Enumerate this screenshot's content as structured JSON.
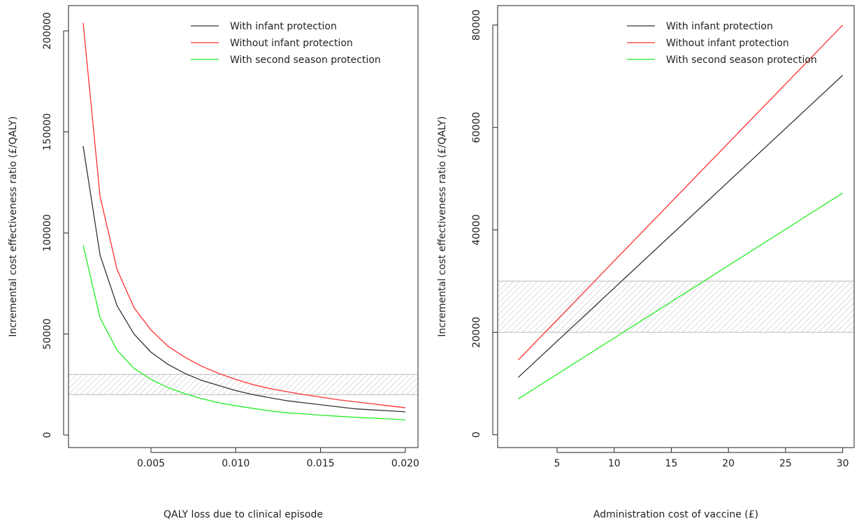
{
  "chart_data": [
    {
      "type": "line",
      "x_label": "QALY loss due to clinical episode",
      "y_label": "Incremental cost effectiveness ratio (£/QALY)",
      "x": [
        0.001,
        0.002,
        0.003,
        0.004,
        0.005,
        0.006,
        0.007,
        0.008,
        0.009,
        0.01,
        0.011,
        0.012,
        0.013,
        0.014,
        0.015,
        0.016,
        0.017,
        0.018,
        0.019,
        0.02
      ],
      "series": [
        {
          "name": "With infant protection",
          "color": "#333333",
          "values": [
            143000,
            89000,
            64000,
            50000,
            41000,
            35000,
            30500,
            27000,
            24500,
            22000,
            20000,
            18500,
            17000,
            16000,
            15000,
            14000,
            13000,
            12500,
            12000,
            11500
          ]
        },
        {
          "name": "Without infant protection",
          "color": "#ff3030",
          "values": [
            204000,
            118000,
            82000,
            63000,
            52000,
            44000,
            38500,
            34000,
            30500,
            27500,
            25000,
            23000,
            21500,
            20000,
            18800,
            17500,
            16500,
            15500,
            14500,
            13500
          ]
        },
        {
          "name": "With second season protection",
          "color": "#22ee22",
          "values": [
            94000,
            58000,
            42000,
            33000,
            27500,
            23500,
            20500,
            18000,
            16000,
            14500,
            13200,
            12000,
            11000,
            10500,
            9800,
            9300,
            8800,
            8400,
            8000,
            7500
          ]
        }
      ],
      "shaded_range": [
        20000,
        30000
      ],
      "xlim": [
        0.000137,
        0.020745
      ],
      "ylim": [
        -6200,
        212500
      ],
      "xticks": [
        0.005,
        {
          "value": 0.01,
          "label": "0.010"
        },
        0.015,
        {
          "value": 0.02,
          "label": "0.020"
        }
      ],
      "yticks": [
        0,
        50000,
        100000,
        150000,
        200000
      ],
      "legend": "top-right"
    },
    {
      "type": "line",
      "x_label": "Administration cost of vaccine (£)",
      "y_label": "Incremental cost effectiveness ratio (£/QALY)",
      "x": [
        1.6,
        30
      ],
      "series": [
        {
          "name": "With infant protection",
          "color": "#333333",
          "values": [
            11200,
            70200
          ]
        },
        {
          "name": "Without infant protection",
          "color": "#ff3030",
          "values": [
            14600,
            80000
          ]
        },
        {
          "name": "With second season protection",
          "color": "#22ee22",
          "values": [
            7000,
            47200
          ]
        }
      ],
      "shaded_range": [
        20000,
        30000
      ],
      "xlim": [
        -0.2,
        31
      ],
      "ylim": [
        -2500,
        83800
      ],
      "xticks": [
        5,
        10,
        15,
        20,
        25,
        30
      ],
      "yticks": [
        0,
        20000,
        40000,
        60000,
        80000
      ],
      "legend": "top-right"
    }
  ]
}
